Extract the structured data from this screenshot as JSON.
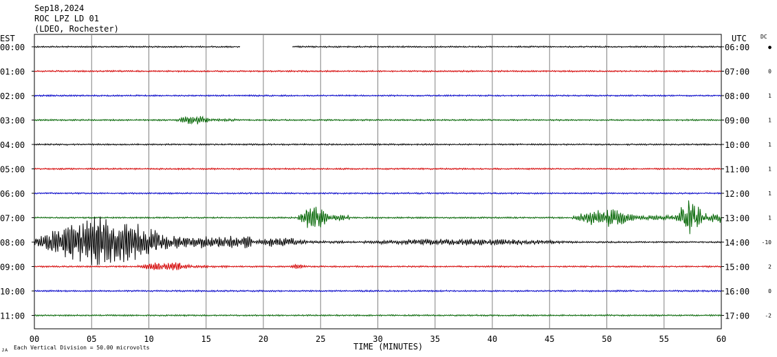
{
  "header": {
    "date": "Sep18,2024",
    "station": "ROC LPZ LD 01",
    "network": "(LDEO, Rochester)"
  },
  "left_zone": "EST",
  "right_zone": "UTC",
  "dc_label": "DC",
  "xlabel": "TIME (MINUTES)",
  "footer_note": "Each Vertical Division =   50.00 microvolts",
  "footer_mark": "ᴊᴀ",
  "chart_data": {
    "type": "line",
    "title": "",
    "xlabel": "TIME (MINUTES)",
    "ylabel": "",
    "xlim": [
      0,
      60
    ],
    "x_ticks": [
      "00",
      "05",
      "10",
      "15",
      "20",
      "25",
      "30",
      "35",
      "40",
      "45",
      "50",
      "55",
      "60"
    ],
    "grid": true,
    "colors": [
      "#000000",
      "#d40000",
      "#0000c8",
      "#006400"
    ],
    "rows": [
      {
        "left": "00:00",
        "right": "06:00",
        "dc": "●",
        "color": "#000000",
        "gaps": [
          [
            18,
            22.5
          ]
        ],
        "events": []
      },
      {
        "left": "01:00",
        "right": "07:00",
        "dc": "0",
        "color": "#d40000",
        "gaps": [],
        "events": []
      },
      {
        "left": "02:00",
        "right": "08:00",
        "dc": "1",
        "color": "#0000c8",
        "gaps": [],
        "events": []
      },
      {
        "left": "03:00",
        "right": "09:00",
        "dc": "1",
        "color": "#006400",
        "gaps": [],
        "events": [
          [
            12.3,
            17.5,
            8
          ]
        ]
      },
      {
        "left": "04:00",
        "right": "10:00",
        "dc": "1",
        "color": "#000000",
        "gaps": [],
        "events": []
      },
      {
        "left": "05:00",
        "right": "11:00",
        "dc": "1",
        "color": "#d40000",
        "gaps": [],
        "events": []
      },
      {
        "left": "06:00",
        "right": "12:00",
        "dc": "1",
        "color": "#0000c8",
        "gaps": [],
        "events": []
      },
      {
        "left": "07:00",
        "right": "13:00",
        "dc": "1",
        "color": "#006400",
        "gaps": [],
        "events": [
          [
            23,
            27.5,
            18
          ],
          [
            47,
            56,
            14
          ],
          [
            56,
            60,
            30
          ]
        ]
      },
      {
        "left": "08:00",
        "right": "14:00",
        "dc": "-10",
        "color": "#000000",
        "gaps": [],
        "events": [
          [
            0,
            19,
            38
          ],
          [
            19,
            27,
            8
          ],
          [
            27,
            60,
            5
          ]
        ]
      },
      {
        "left": "09:00",
        "right": "15:00",
        "dc": "2",
        "color": "#d40000",
        "gaps": [],
        "events": [
          [
            9,
            17,
            7
          ],
          [
            22,
            25,
            4
          ]
        ]
      },
      {
        "left": "10:00",
        "right": "16:00",
        "dc": "0",
        "color": "#0000c8",
        "gaps": [],
        "events": []
      },
      {
        "left": "11:00",
        "right": "17:00",
        "dc": "-2",
        "color": "#006400",
        "gaps": [],
        "events": []
      }
    ]
  }
}
